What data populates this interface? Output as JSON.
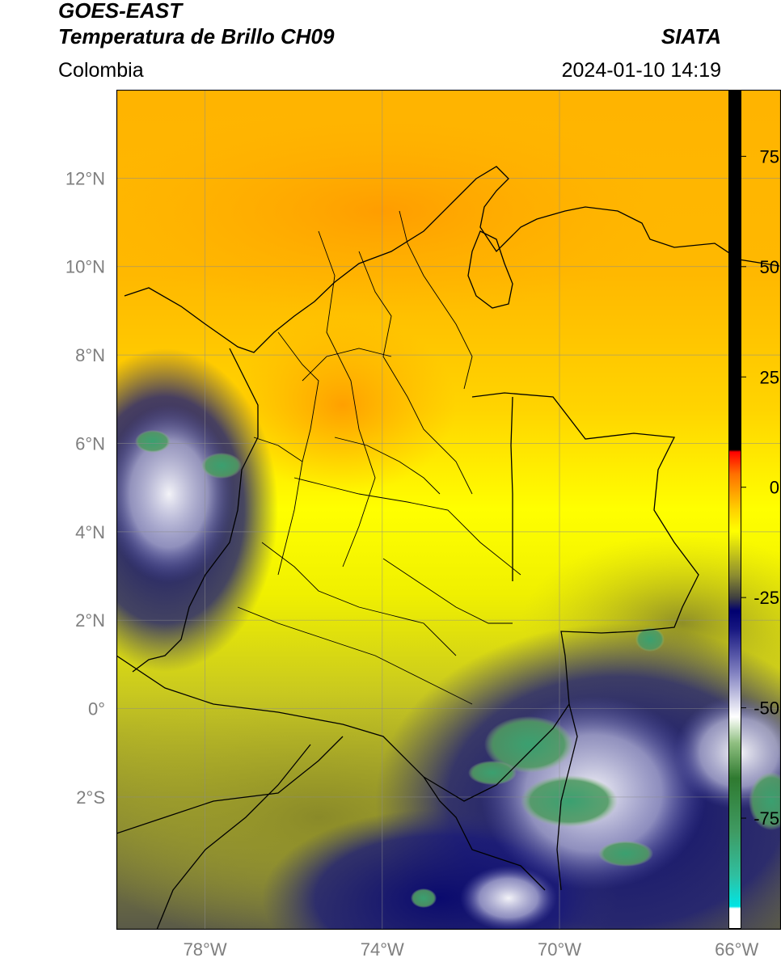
{
  "header": {
    "satellite": "GOES-EAST",
    "product": "Temperatura de Brillo CH09",
    "agency": "SIATA",
    "region": "Colombia",
    "datetime": "2024-01-10 14:19"
  },
  "map": {
    "lon_range": [
      -80,
      -65
    ],
    "lat_range": [
      -5,
      14
    ],
    "lat_ticks": [
      {
        "value": 12,
        "label": "12°N"
      },
      {
        "value": 10,
        "label": "10°N"
      },
      {
        "value": 8,
        "label": "8°N"
      },
      {
        "value": 6,
        "label": "6°N"
      },
      {
        "value": 4,
        "label": "4°N"
      },
      {
        "value": 2,
        "label": "2°N"
      },
      {
        "value": 0,
        "label": "0°"
      },
      {
        "value": -2,
        "label": "2°S"
      }
    ],
    "lon_ticks": [
      {
        "value": -78,
        "label": "78°W"
      },
      {
        "value": -74,
        "label": "74°W"
      },
      {
        "value": -70,
        "label": "70°W"
      },
      {
        "value": -66,
        "label": "66°W"
      }
    ],
    "grid": true,
    "colors": {
      "grid": "#8c8c8c",
      "tick_label": "#7f7f7f",
      "border": "#000000"
    }
  },
  "colorbar": {
    "range": [
      -100,
      90
    ],
    "ticks": [
      {
        "value": 75,
        "label": "75"
      },
      {
        "value": 50,
        "label": "50"
      },
      {
        "value": 25,
        "label": "25"
      },
      {
        "value": 0,
        "label": "0"
      },
      {
        "value": -25,
        "label": "-25"
      },
      {
        "value": -50,
        "label": "-50"
      },
      {
        "value": -75,
        "label": "-75"
      }
    ],
    "stops": [
      {
        "value": -100,
        "color": "#ffffff"
      },
      {
        "value": -95.5,
        "color": "#ffffff"
      },
      {
        "value": -95,
        "color": "#00e5e5"
      },
      {
        "value": -88,
        "color": "#2fbfa0"
      },
      {
        "value": -78,
        "color": "#3f9a62"
      },
      {
        "value": -66,
        "color": "#2f7a30"
      },
      {
        "value": -58,
        "color": "#8fbf80"
      },
      {
        "value": -52,
        "color": "#ffffff"
      },
      {
        "value": -42,
        "color": "#8080c0"
      },
      {
        "value": -32,
        "color": "#161680"
      },
      {
        "value": -28,
        "color": "#000070"
      },
      {
        "value": -25,
        "color": "#404040"
      },
      {
        "value": -20,
        "color": "#8c8c30"
      },
      {
        "value": -10,
        "color": "#ffff00"
      },
      {
        "value": -5,
        "color": "#ffd000"
      },
      {
        "value": 3,
        "color": "#ff7000"
      },
      {
        "value": 8,
        "color": "#ff0000"
      },
      {
        "value": 8.5,
        "color": "#000000"
      },
      {
        "value": 90,
        "color": "#000000"
      }
    ]
  }
}
